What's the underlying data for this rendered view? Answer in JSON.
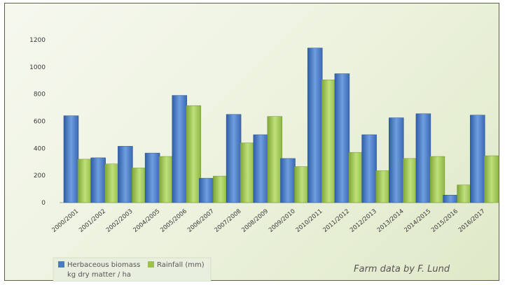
{
  "chart_data": {
    "type": "bar",
    "categories": [
      "2000/2001",
      "2001/2002",
      "2002/2003",
      "2004/2005",
      "2005/2006",
      "2006/2007",
      "2007/2008",
      "2008/2009",
      "2009/2010",
      "2010/2011",
      "2011/2012",
      "2012/2013",
      "2013/2014",
      "2014/2015",
      "2015/2016",
      "2016/2017"
    ],
    "series": [
      {
        "name": "Herbaceous biomass kg dry matter / ha",
        "color": "#4a7bc8",
        "values": [
          640,
          330,
          415,
          365,
          790,
          180,
          650,
          500,
          325,
          1140,
          950,
          500,
          625,
          655,
          55,
          645
        ]
      },
      {
        "name": "Rainfall (mm)",
        "color": "#9cc24a",
        "values": [
          320,
          285,
          255,
          340,
          715,
          195,
          440,
          635,
          265,
          905,
          370,
          235,
          325,
          340,
          130,
          345
        ]
      }
    ],
    "ylim": [
      0,
      1200
    ],
    "yticks": [
      0,
      200,
      400,
      600,
      800,
      1000,
      1200
    ],
    "grid": false,
    "legend_placement": "bottom-left"
  },
  "legend": {
    "biomass_line1": "Herbaceous biomass",
    "biomass_line2": "kg dry matter / ha",
    "rainfall": "Rainfall (mm)"
  },
  "credit": "Farm data by F. Lund"
}
